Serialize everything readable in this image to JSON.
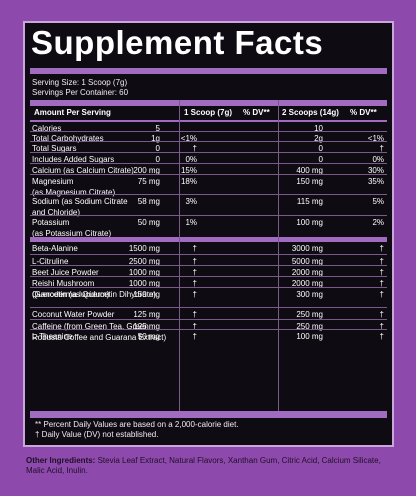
{
  "title": "Supplement Facts",
  "serving_size": "Serving Size: 1 Scoop (7g)",
  "servings_per_container": "Servings Per Container: 60",
  "header": {
    "amount_per_serving": "Amount Per Serving",
    "col1": "1 Scoop (7g)",
    "col1_dv": "% DV**",
    "col2": "2 Scoops (14g)",
    "col2_dv": "% DV**"
  },
  "rows": [
    {
      "name": "Calories",
      "a": "5",
      "b": "",
      "c": "10",
      "d": ""
    },
    {
      "name": "Total Carbohydrates",
      "a": "1g",
      "b": "<1%",
      "c": "2g",
      "d": "<1%"
    },
    {
      "name": "Total Sugars",
      "a": "0",
      "b": "†",
      "c": "0",
      "d": "†"
    },
    {
      "name": "   Includes Added Sugars",
      "a": "0",
      "b": "0%",
      "c": "0",
      "d": "0%"
    },
    {
      "name": "Calcium (as Calcium Citrate)",
      "a": "200 mg",
      "b": "15%",
      "c": "400 mg",
      "d": "30%"
    },
    {
      "name": "Magnesium\n(as Magnesium Citrate)",
      "a": "75 mg",
      "b": "18%",
      "c": "150 mg",
      "d": "35%"
    },
    {
      "name": "Sodium (as Sodium Citrate\nand Chloride)",
      "a": "58 mg",
      "b": "3%",
      "c": "115 mg",
      "d": "5%"
    },
    {
      "name": "Potassium\n(as Potassium Citrate)",
      "a": "50 mg",
      "b": "1%",
      "c": "100 mg",
      "d": "2%"
    },
    {
      "name": "Beta-Alanine",
      "a": "1500 mg",
      "b": "†",
      "c": "3000 mg",
      "d": "†"
    },
    {
      "name": "L-Citruline",
      "a": "2500 mg",
      "b": "†",
      "c": "5000 mg",
      "d": "†"
    },
    {
      "name": "Beet Juice Powder",
      "a": "1000 mg",
      "b": "†",
      "c": "2000 mg",
      "d": "†"
    },
    {
      "name": "Reishi Mushroom\n(Ganoderma lucidum)",
      "a": "1000 mg",
      "b": "†",
      "c": "2000 mg",
      "d": "†"
    },
    {
      "name": "Quercetin (as Quercetin Dihydrate)",
      "a": "150 mg",
      "b": "†",
      "c": "300 mg",
      "d": "†"
    },
    {
      "name": "Coconut Water Powder",
      "a": "125 mg",
      "b": "†",
      "c": "250 mg",
      "d": "†"
    },
    {
      "name": "Caffeine (from Green Tea, Green\nRobusta Coffee and Guarana Extract)",
      "a": "125 mg",
      "b": "†",
      "c": "250 mg",
      "d": "†"
    },
    {
      "name": "L-Theanine",
      "a": "50 mg",
      "b": "†",
      "c": "100 mg",
      "d": "†"
    }
  ],
  "footnote1": "** Percent Daily Values are based on a 2,000-calorie diet.",
  "footnote2": "† Daily Value (DV) not established.",
  "other_label": "Other Ingredients:",
  "other_text": " Stevia Leaf Extract, Natural Flavors, Xanthan Gum, Citric Acid, Calcium Silicate, Malic Acid, Inulin.",
  "colors": {
    "background": "#8e49ad",
    "panel": "#0f0b12",
    "bar": "#a26bc2"
  }
}
